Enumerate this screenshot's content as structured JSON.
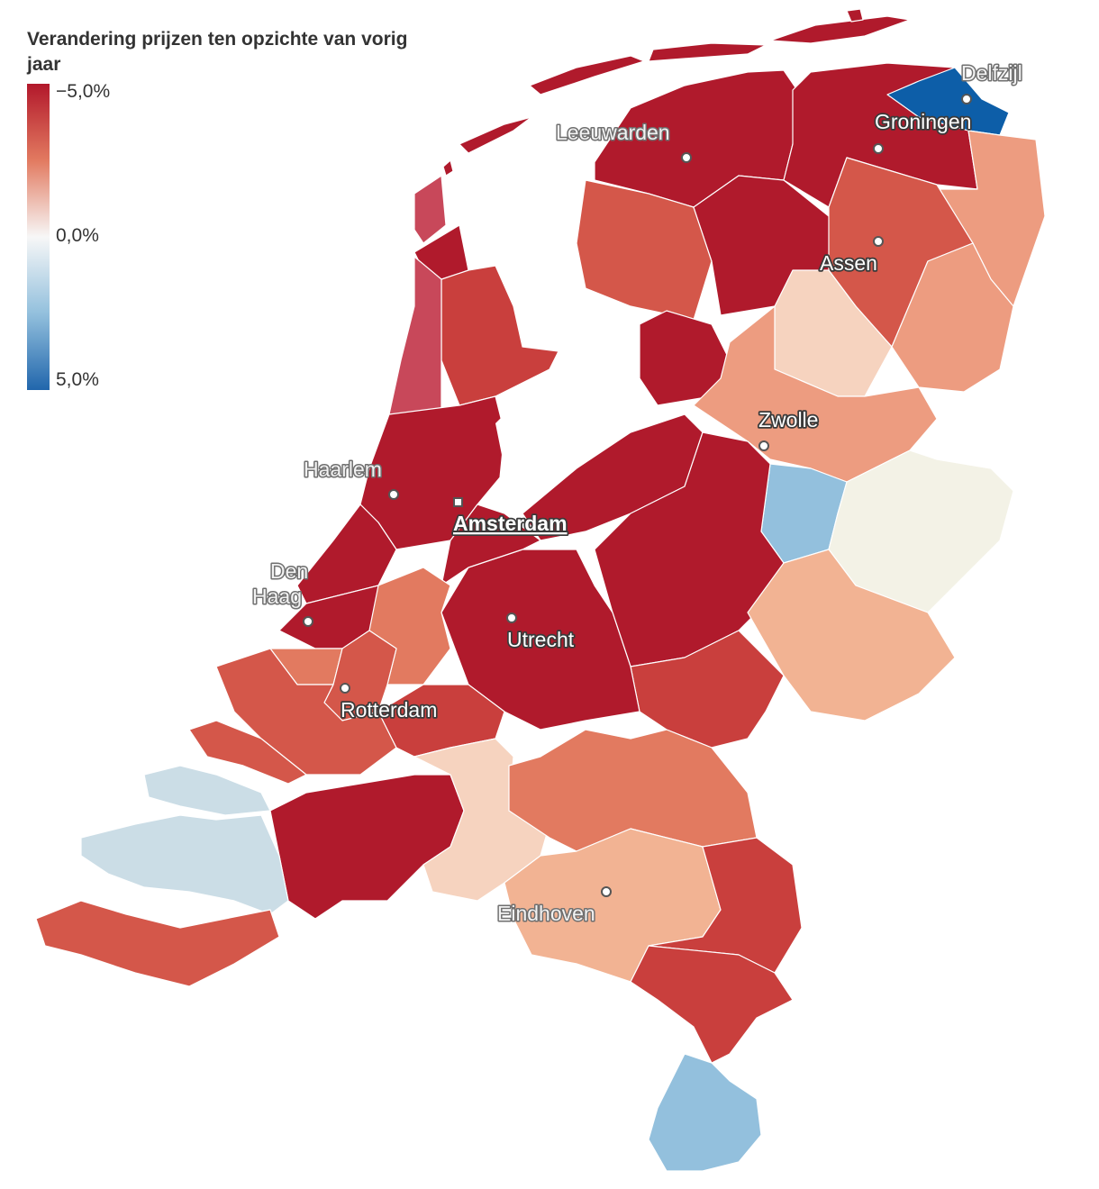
{
  "legend": {
    "title": "Verandering prijzen ten opzichte van vorig jaar",
    "ticks": [
      "−5,0%",
      "0,0%",
      "5,0%"
    ],
    "range": [
      -5.0,
      5.0
    ],
    "colors": {
      "low_end": "#b2182b",
      "mid": "#f7f7f7",
      "high_end": "#2166ac"
    }
  },
  "cities": {
    "delfzijl": "Delfzijl",
    "groningen": "Groningen",
    "leeuwarden": "Leeuwarden",
    "assen": "Assen",
    "zwolle": "Zwolle",
    "haarlem": "Haarlem",
    "amsterdam": "Amsterdam",
    "den_haag_line1": "Den",
    "den_haag_line2": "Haag",
    "utrecht": "Utrecht",
    "rotterdam": "Rotterdam",
    "eindhoven": "Eindhoven"
  },
  "region_colors": {
    "dark_red": "#b01a2c",
    "red": "#c93f3d",
    "red_mid": "#d4574a",
    "salmon": "#e27a60",
    "light_salmon": "#ed9c80",
    "pale_salmon": "#f2b393",
    "peach": "#f6d3bf",
    "cream": "#f3f2e6",
    "pale_blue": "#cbdde6",
    "light_blue": "#93c0dd",
    "deep_blue": "#0d5ea8",
    "dune_pink": "#c8485a"
  }
}
